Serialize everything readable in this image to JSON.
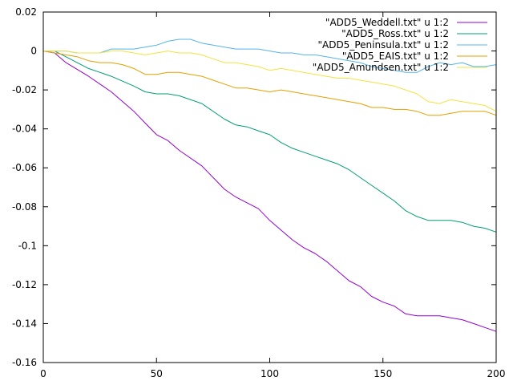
{
  "chart_data": {
    "type": "line",
    "title": "",
    "xlabel": "",
    "ylabel": "",
    "xlim": [
      0,
      200
    ],
    "ylim": [
      -0.16,
      0.02
    ],
    "grid": false,
    "legend_position": "top-right",
    "x_ticks": [
      0,
      50,
      100,
      150,
      200
    ],
    "y_ticks": [
      0.02,
      0,
      -0.02,
      -0.04,
      -0.06,
      -0.08,
      -0.1,
      -0.12,
      -0.14,
      -0.16
    ],
    "x_tick_labels": [
      "0",
      "50",
      "100",
      "150",
      "200"
    ],
    "y_tick_labels": [
      "0.02",
      "0",
      "-0.02",
      "-0.04",
      "-0.06",
      "-0.08",
      "-0.1",
      "-0.12",
      "-0.14",
      "-0.16"
    ],
    "series": [
      {
        "name": "\"ADD5_Weddell.txt\" u 1:2",
        "color": "#9400d3",
        "points": [
          [
            0,
            0
          ],
          [
            5,
            -0.001
          ],
          [
            10,
            -0.006
          ],
          [
            20,
            -0.013
          ],
          [
            30,
            -0.021
          ],
          [
            40,
            -0.031
          ],
          [
            45,
            -0.037
          ],
          [
            50,
            -0.043
          ],
          [
            55,
            -0.046
          ],
          [
            60,
            -0.051
          ],
          [
            70,
            -0.059
          ],
          [
            80,
            -0.071
          ],
          [
            85,
            -0.075
          ],
          [
            90,
            -0.078
          ],
          [
            95,
            -0.081
          ],
          [
            100,
            -0.087
          ],
          [
            105,
            -0.092
          ],
          [
            110,
            -0.097
          ],
          [
            115,
            -0.101
          ],
          [
            120,
            -0.104
          ],
          [
            125,
            -0.108
          ],
          [
            130,
            -0.113
          ],
          [
            135,
            -0.118
          ],
          [
            140,
            -0.121
          ],
          [
            145,
            -0.126
          ],
          [
            150,
            -0.129
          ],
          [
            155,
            -0.131
          ],
          [
            160,
            -0.135
          ],
          [
            165,
            -0.136
          ],
          [
            170,
            -0.136
          ],
          [
            175,
            -0.136
          ],
          [
            180,
            -0.137
          ],
          [
            185,
            -0.138
          ],
          [
            190,
            -0.14
          ],
          [
            195,
            -0.142
          ],
          [
            200,
            -0.144
          ]
        ]
      },
      {
        "name": "\"ADD5_Ross.txt\" u 1:2",
        "color": "#009e73",
        "points": [
          [
            0,
            0
          ],
          [
            5,
            0
          ],
          [
            10,
            -0.003
          ],
          [
            20,
            -0.009
          ],
          [
            30,
            -0.013
          ],
          [
            40,
            -0.018
          ],
          [
            45,
            -0.021
          ],
          [
            50,
            -0.022
          ],
          [
            55,
            -0.022
          ],
          [
            60,
            -0.023
          ],
          [
            70,
            -0.027
          ],
          [
            80,
            -0.035
          ],
          [
            85,
            -0.038
          ],
          [
            90,
            -0.039
          ],
          [
            95,
            -0.041
          ],
          [
            100,
            -0.043
          ],
          [
            105,
            -0.047
          ],
          [
            110,
            -0.05
          ],
          [
            115,
            -0.052
          ],
          [
            120,
            -0.054
          ],
          [
            125,
            -0.056
          ],
          [
            130,
            -0.058
          ],
          [
            135,
            -0.061
          ],
          [
            140,
            -0.065
          ],
          [
            145,
            -0.069
          ],
          [
            150,
            -0.073
          ],
          [
            155,
            -0.077
          ],
          [
            160,
            -0.082
          ],
          [
            165,
            -0.085
          ],
          [
            170,
            -0.087
          ],
          [
            175,
            -0.087
          ],
          [
            180,
            -0.087
          ],
          [
            185,
            -0.088
          ],
          [
            190,
            -0.09
          ],
          [
            195,
            -0.091
          ],
          [
            200,
            -0.093
          ]
        ]
      },
      {
        "name": "\"ADD5_Peninsula.txt\" u 1:2",
        "color": "#56b4e9",
        "points": [
          [
            0,
            0
          ],
          [
            5,
            0
          ],
          [
            10,
            0
          ],
          [
            15,
            -0.001
          ],
          [
            20,
            -0.001
          ],
          [
            25,
            -0.001
          ],
          [
            30,
            0.001
          ],
          [
            35,
            0.001
          ],
          [
            40,
            0.001
          ],
          [
            45,
            0.002
          ],
          [
            50,
            0.003
          ],
          [
            55,
            0.005
          ],
          [
            60,
            0.006
          ],
          [
            65,
            0.006
          ],
          [
            70,
            0.004
          ],
          [
            75,
            0.003
          ],
          [
            80,
            0.002
          ],
          [
            85,
            0.001
          ],
          [
            90,
            0.001
          ],
          [
            95,
            0.001
          ],
          [
            100,
            0
          ],
          [
            105,
            -0.001
          ],
          [
            110,
            -0.001
          ],
          [
            115,
            -0.002
          ],
          [
            120,
            -0.002
          ],
          [
            125,
            -0.003
          ],
          [
            130,
            -0.004
          ],
          [
            135,
            -0.005
          ],
          [
            140,
            -0.006
          ],
          [
            145,
            -0.008
          ],
          [
            150,
            -0.009
          ],
          [
            155,
            -0.01
          ],
          [
            160,
            -0.011
          ],
          [
            165,
            -0.011
          ],
          [
            170,
            -0.008
          ],
          [
            175,
            -0.006
          ],
          [
            180,
            -0.007
          ],
          [
            185,
            -0.006
          ],
          [
            190,
            -0.008
          ],
          [
            195,
            -0.008
          ],
          [
            200,
            -0.007
          ]
        ]
      },
      {
        "name": "\"ADD5_EAIS.txt\" u 1:2",
        "color": "#e69f00",
        "points": [
          [
            0,
            0
          ],
          [
            5,
            -0.001
          ],
          [
            10,
            -0.002
          ],
          [
            15,
            -0.003
          ],
          [
            20,
            -0.005
          ],
          [
            25,
            -0.006
          ],
          [
            30,
            -0.006
          ],
          [
            35,
            -0.007
          ],
          [
            40,
            -0.009
          ],
          [
            45,
            -0.012
          ],
          [
            50,
            -0.012
          ],
          [
            55,
            -0.011
          ],
          [
            60,
            -0.011
          ],
          [
            65,
            -0.012
          ],
          [
            70,
            -0.013
          ],
          [
            75,
            -0.015
          ],
          [
            80,
            -0.017
          ],
          [
            85,
            -0.019
          ],
          [
            90,
            -0.019
          ],
          [
            95,
            -0.02
          ],
          [
            100,
            -0.021
          ],
          [
            105,
            -0.02
          ],
          [
            110,
            -0.021
          ],
          [
            115,
            -0.022
          ],
          [
            120,
            -0.023
          ],
          [
            125,
            -0.024
          ],
          [
            130,
            -0.025
          ],
          [
            135,
            -0.026
          ],
          [
            140,
            -0.027
          ],
          [
            145,
            -0.029
          ],
          [
            150,
            -0.029
          ],
          [
            155,
            -0.03
          ],
          [
            160,
            -0.03
          ],
          [
            165,
            -0.031
          ],
          [
            170,
            -0.033
          ],
          [
            175,
            -0.033
          ],
          [
            180,
            -0.032
          ],
          [
            185,
            -0.031
          ],
          [
            190,
            -0.031
          ],
          [
            195,
            -0.031
          ],
          [
            200,
            -0.033
          ]
        ]
      },
      {
        "name": "\"ADD5_Amundsen.txt\" u 1:2",
        "color": "#f0e442",
        "points": [
          [
            0,
            0
          ],
          [
            5,
            0
          ],
          [
            10,
            0
          ],
          [
            15,
            -0.001
          ],
          [
            20,
            -0.001
          ],
          [
            25,
            -0.001
          ],
          [
            30,
            0
          ],
          [
            35,
            0
          ],
          [
            40,
            -0.001
          ],
          [
            45,
            -0.002
          ],
          [
            50,
            -0.001
          ],
          [
            55,
            0
          ],
          [
            60,
            -0.001
          ],
          [
            65,
            -0.001
          ],
          [
            70,
            -0.002
          ],
          [
            75,
            -0.004
          ],
          [
            80,
            -0.006
          ],
          [
            85,
            -0.006
          ],
          [
            90,
            -0.007
          ],
          [
            95,
            -0.008
          ],
          [
            100,
            -0.01
          ],
          [
            105,
            -0.009
          ],
          [
            110,
            -0.01
          ],
          [
            115,
            -0.011
          ],
          [
            120,
            -0.012
          ],
          [
            125,
            -0.013
          ],
          [
            130,
            -0.014
          ],
          [
            135,
            -0.014
          ],
          [
            140,
            -0.015
          ],
          [
            145,
            -0.016
          ],
          [
            150,
            -0.017
          ],
          [
            155,
            -0.018
          ],
          [
            160,
            -0.02
          ],
          [
            165,
            -0.022
          ],
          [
            170,
            -0.026
          ],
          [
            175,
            -0.027
          ],
          [
            180,
            -0.025
          ],
          [
            185,
            -0.026
          ],
          [
            190,
            -0.027
          ],
          [
            195,
            -0.028
          ],
          [
            200,
            -0.031
          ]
        ]
      }
    ]
  }
}
